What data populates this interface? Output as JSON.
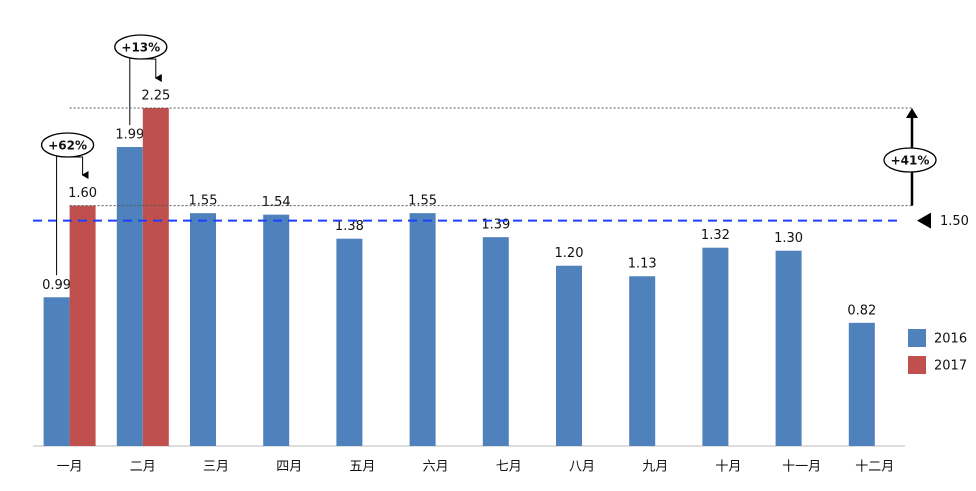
{
  "chart_data": {
    "type": "bar",
    "categories": [
      "一月",
      "二月",
      "三月",
      "四月",
      "五月",
      "六月",
      "七月",
      "八月",
      "九月",
      "十月",
      "十一月",
      "十二月"
    ],
    "series": [
      {
        "name": "2016",
        "color": "#4f81bd",
        "values": [
          0.99,
          1.99,
          1.55,
          1.54,
          1.38,
          1.55,
          1.39,
          1.2,
          1.13,
          1.32,
          1.3,
          0.82
        ],
        "value_labels": [
          "0.99",
          "1.99",
          "1.55",
          "1.54",
          "1.38",
          "1.55",
          "1.39",
          "1.20",
          "1.13",
          "1.32",
          "1.30",
          "0.82"
        ]
      },
      {
        "name": "2017",
        "color": "#c0504d",
        "values": [
          1.6,
          2.25,
          null,
          null,
          null,
          null,
          null,
          null,
          null,
          null,
          null,
          null
        ],
        "value_labels": [
          "1.60",
          "2.25",
          null,
          null,
          null,
          null,
          null,
          null,
          null,
          null,
          null,
          null
        ]
      }
    ],
    "reference_line": {
      "value": 1.5,
      "label": "1.50",
      "color": "#1f3fff"
    },
    "annotations": [
      "+62%",
      "+13%",
      "+41%"
    ],
    "legend": "right"
  }
}
